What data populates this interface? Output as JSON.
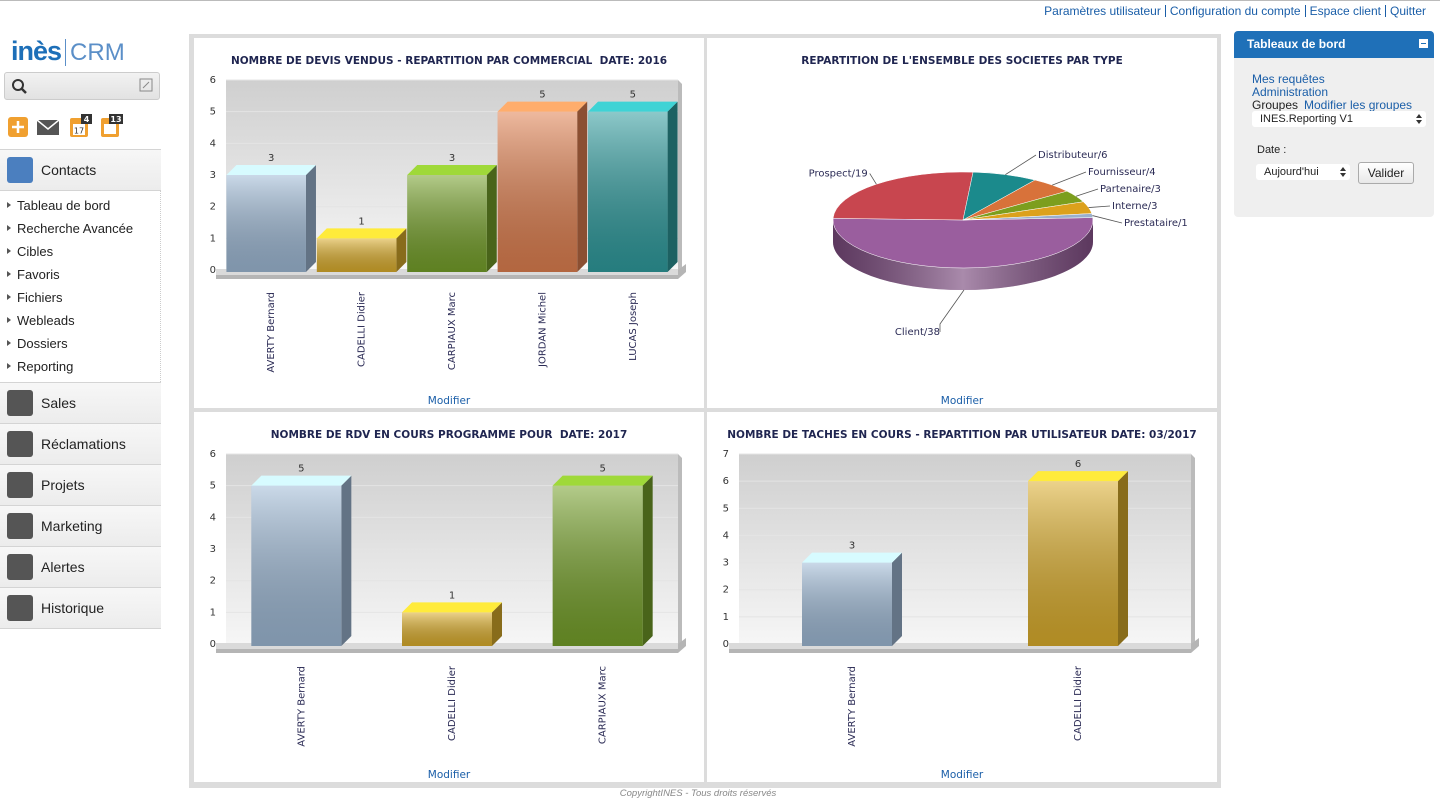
{
  "top_links": [
    "Paramètres utilisateur",
    "Configuration du compte",
    "Espace client",
    "Quitter"
  ],
  "logo": {
    "brand": "inès",
    "product": "CRM"
  },
  "shortcuts": {
    "calendar_day": "17",
    "counts": [
      4,
      13
    ]
  },
  "sidebar": {
    "sections": [
      {
        "label": "Contacts",
        "items": [
          "Tableau de bord",
          "Recherche Avancée",
          "Cibles",
          "Favoris",
          "Fichiers",
          "Webleads",
          "Dossiers",
          "Reporting"
        ]
      },
      {
        "label": "Sales"
      },
      {
        "label": "Réclamations"
      },
      {
        "label": "Projets"
      },
      {
        "label": "Marketing"
      },
      {
        "label": "Alertes"
      },
      {
        "label": "Historique"
      }
    ]
  },
  "chart_data": [
    {
      "type": "bar",
      "title": "NOMBRE DE DEVIS VENDUS - REPARTITION PAR COMMERCIAL  DATE: 2016",
      "categories": [
        "AVERTY Bernard",
        "CADELLI Didier",
        "CARPIAUX Marc",
        "JORDAN Michel",
        "LUCAS Joseph"
      ],
      "values": [
        3,
        1,
        3,
        5,
        5
      ],
      "colors": [
        "#9fbad6",
        "#dcae2c",
        "#76a12a",
        "#e08050",
        "#2f9c9e"
      ],
      "ylim": [
        0,
        6
      ],
      "yticks": [
        0,
        1,
        2,
        3,
        4,
        5,
        6
      ],
      "link": "Modifier"
    },
    {
      "type": "pie",
      "title": "REPARTITION DE L'ENSEMBLE DES SOCIETES PAR TYPE",
      "labels": [
        "Client/38",
        "Prospect/19",
        "Distributeur/6",
        "Fournisseur/4",
        "Partenaire/3",
        "Interne/3",
        "Prestataire/1"
      ],
      "values": [
        38,
        19,
        6,
        4,
        3,
        3,
        1
      ],
      "colors": [
        "#9a5e9e",
        "#c8464f",
        "#1b8a8c",
        "#d8723a",
        "#7c9e1e",
        "#dca11c",
        "#9ab0cc"
      ],
      "link": "Modifier"
    },
    {
      "type": "bar",
      "title": "NOMBRE DE RDV EN COURS PROGRAMME POUR  DATE: 2017",
      "categories": [
        "AVERTY Bernard",
        "CADELLI Didier",
        "CARPIAUX Marc"
      ],
      "values": [
        5,
        1,
        5
      ],
      "colors": [
        "#9fbad6",
        "#dcae2c",
        "#76a12a"
      ],
      "ylim": [
        0,
        6
      ],
      "yticks": [
        0,
        1,
        2,
        3,
        4,
        5,
        6
      ],
      "link": "Modifier"
    },
    {
      "type": "bar",
      "title": "NOMBRE DE TACHES EN COURS - REPARTITION PAR UTILISATEUR DATE: 03/2017",
      "categories": [
        "AVERTY Bernard",
        "CADELLI Didier"
      ],
      "values": [
        3,
        6
      ],
      "colors": [
        "#9fbad6",
        "#dcae2c"
      ],
      "ylim": [
        0,
        7
      ],
      "yticks": [
        0,
        1,
        2,
        3,
        4,
        5,
        6,
        7
      ],
      "link": "Modifier"
    }
  ],
  "dashboard_panel": {
    "title": "Tableaux de bord",
    "links": [
      "Mes requêtes",
      "Administration"
    ],
    "groups_label": "Groupes",
    "groups_link": "Modifier les groupes",
    "group_select": "INES.Reporting V1",
    "date_label": "Date :",
    "date_select": "Aujourd'hui",
    "button": "Valider"
  },
  "footer": "CopyrightINES - Tous droits réservés"
}
